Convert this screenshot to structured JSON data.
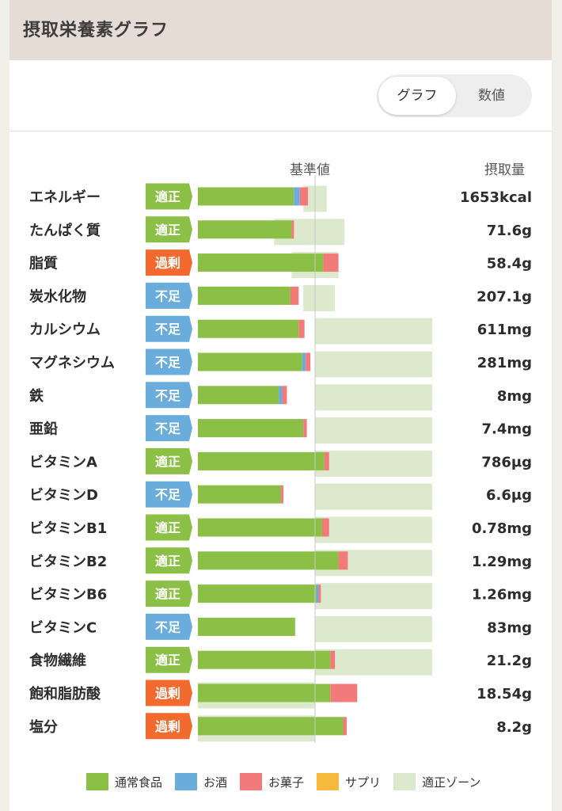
{
  "header": {
    "title": "摂取栄養素グラフ"
  },
  "toggle": {
    "graph_label": "グラフ",
    "number_label": "数値"
  },
  "columns": {
    "reference": "基準値",
    "intake": "摂取量"
  },
  "colors": {
    "normal_food": "#8bbf45",
    "alcohol": "#6aaddc",
    "sweets": "#f27a7a",
    "supplement": "#f6b93b",
    "zone": "#dde9cc",
    "badge_ok": "#8bbf45",
    "badge_low": "#6aaddc",
    "badge_over": "#f36a2e"
  },
  "legend": [
    {
      "key": "normal_food",
      "label": "通常食品"
    },
    {
      "key": "alcohol",
      "label": "お酒"
    },
    {
      "key": "sweets",
      "label": "お菓子"
    },
    {
      "key": "supplement",
      "label": "サプリ"
    },
    {
      "key": "zone",
      "label": "適正ゾーン"
    }
  ],
  "chart_data": {
    "type": "bar",
    "orientation": "horizontal",
    "stacked": true,
    "unit": "% of reference value (基準値 = 100)",
    "categories": [
      "エネルギー",
      "たんぱく質",
      "脂質",
      "炭水化物",
      "カルシウム",
      "マグネシウム",
      "鉄",
      "亜鉛",
      "ビタミンA",
      "ビタミンD",
      "ビタミンB1",
      "ビタミンB2",
      "ビタミンB6",
      "ビタミンC",
      "食物繊維",
      "飽和脂肪酸",
      "塩分"
    ],
    "status": [
      "適正",
      "適正",
      "過剰",
      "不足",
      "不足",
      "不足",
      "不足",
      "不足",
      "適正",
      "不足",
      "適正",
      "適正",
      "適正",
      "不足",
      "適正",
      "過剰",
      "過剰"
    ],
    "intake": [
      "1653kcal",
      "71.6g",
      "58.4g",
      "207.1g",
      "611mg",
      "281mg",
      "8mg",
      "7.4mg",
      "786μg",
      "6.6μg",
      "0.78mg",
      "1.29mg",
      "1.26mg",
      "83mg",
      "21.2g",
      "18.54g",
      "8.2g"
    ],
    "series": [
      {
        "name": "通常食品",
        "values": [
          82,
          80,
          107,
          79,
          86,
          89,
          69,
          90,
          108,
          71,
          106,
          120,
          101,
          83,
          113,
          113,
          124
        ]
      },
      {
        "name": "お酒",
        "values": [
          5,
          0,
          0,
          0,
          0,
          3,
          3,
          0,
          0,
          0,
          0,
          0,
          2,
          0,
          0,
          0,
          0
        ]
      },
      {
        "name": "お菓子",
        "values": [
          7,
          2,
          13,
          7,
          5,
          4,
          4,
          3,
          4,
          2,
          6,
          8,
          2,
          0,
          4,
          23,
          3
        ]
      },
      {
        "name": "サプリ",
        "values": [
          0,
          0,
          0,
          0,
          0,
          0,
          0,
          0,
          0,
          0,
          0,
          0,
          0,
          0,
          0,
          0,
          0
        ]
      }
    ],
    "zones": [
      [
        90,
        110
      ],
      [
        65,
        125
      ],
      [
        80,
        120
      ],
      [
        90,
        117
      ],
      [
        100,
        200
      ],
      [
        100,
        200
      ],
      [
        100,
        200
      ],
      [
        100,
        200
      ],
      [
        100,
        200
      ],
      [
        100,
        200
      ],
      [
        100,
        200
      ],
      [
        100,
        200
      ],
      [
        100,
        200
      ],
      [
        100,
        200
      ],
      [
        100,
        200
      ],
      [
        0,
        100
      ],
      [
        0,
        100
      ]
    ],
    "xlim": [
      0,
      200
    ],
    "reference": 100,
    "grid": false,
    "legend_position": "bottom"
  }
}
